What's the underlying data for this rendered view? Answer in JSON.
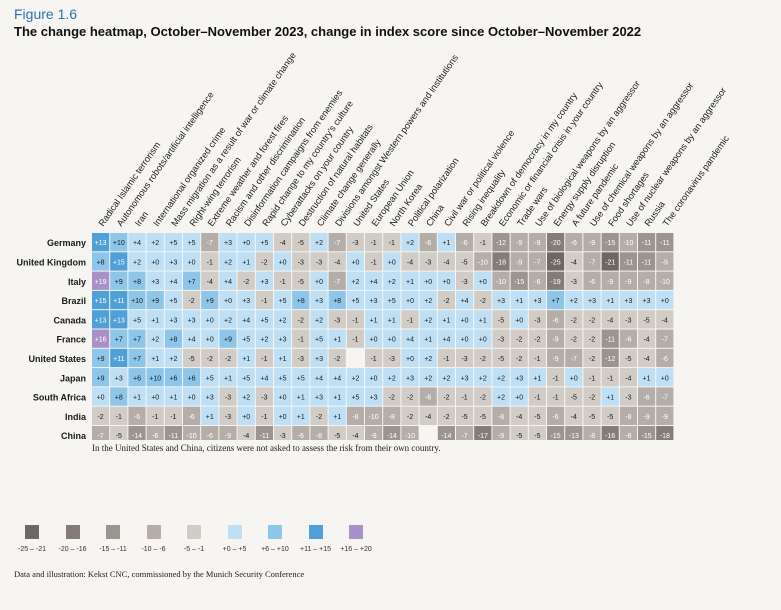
{
  "figure_label": "Figure 1.6",
  "title": "The change heatmap, October–November 2023, change in index score since October–November 2022",
  "note": "In the United States and China, citizens were not asked to assess the risk from their own country.",
  "source": "Data and illustration: Kekst CNC, commissioned by the Munich Security Conference",
  "chart_data": {
    "type": "heatmap",
    "columns": [
      "Radical Islamic terrorism",
      "Autonomous robots/artificial intelligence",
      "Iran",
      "International organized crime",
      "Mass migration as a result of war or climate change",
      "Right-wing terrorism",
      "Extreme weather and forest fires",
      "Racism and other discrimination",
      "Disinformation campaigns from enemies",
      "Rapid change to my country's culture",
      "Cyberattacks on your country",
      "Destruction of natural habitats",
      "Climate change generally",
      "Divisions amongst Western powers and institutions",
      "United States",
      "European Union",
      "North Korea",
      "Political polarization",
      "China",
      "Civil war or political violence",
      "Rising inequality",
      "Breakdown of democracy in my country",
      "Economic or financial crisis in your country",
      "Trade wars",
      "Use of biological weapons by an aggressor",
      "Energy supply disruption",
      "A future pandemic",
      "Use of chemical weapons by an aggressor",
      "Food shortages",
      "Use of nuclear weapons by an aggressor",
      "Russia",
      "The coronavirus pandemic"
    ],
    "rows": [
      {
        "country": "Germany",
        "values": [
          "+13",
          "+10",
          "+4",
          "+2",
          "+5",
          "+5",
          "-7",
          "+3",
          "+0",
          "+5",
          "-4",
          "-5",
          "+2",
          "-7",
          "-3",
          "-1",
          "-1",
          "+2",
          "-6",
          "+1",
          "-6",
          "-1",
          "-12",
          "-9",
          "-9",
          "-20",
          "-6",
          "-9",
          "-15",
          "-10",
          "-11",
          "-11"
        ]
      },
      {
        "country": "United Kingdom",
        "values": [
          "+8",
          "+15",
          "+2",
          "+0",
          "+3",
          "+0",
          "-1",
          "+2",
          "+1",
          "-2",
          "+0",
          "-3",
          "-3",
          "-4",
          "+0",
          "-1",
          "+0",
          "-4",
          "-3",
          "-4",
          "-5",
          "-10",
          "-18",
          "-9",
          "-7",
          "-25",
          "-4",
          "-7",
          "-21",
          "-11",
          "-11",
          "-9"
        ]
      },
      {
        "country": "Italy",
        "values": [
          "+19",
          "+9",
          "+8",
          "+3",
          "+4",
          "+7",
          "-4",
          "+4",
          "-2",
          "+3",
          "-1",
          "-5",
          "+0",
          "-7",
          "+2",
          "+4",
          "+2",
          "+1",
          "+0",
          "+0",
          "-3",
          "+0",
          "-10",
          "-15",
          "-6",
          "-19",
          "-3",
          "-6",
          "-9",
          "-9",
          "-8",
          "-10"
        ]
      },
      {
        "country": "Brazil",
        "values": [
          "+15",
          "+11",
          "+10",
          "+9",
          "+5",
          "-2",
          "+9",
          "+0",
          "+3",
          "-1",
          "+5",
          "+8",
          "+3",
          "+8",
          "+5",
          "+3",
          "+5",
          "+0",
          "+2",
          "-2",
          "+4",
          "-2",
          "+3",
          "+1",
          "+3",
          "+7",
          "+2",
          "+3",
          "+1",
          "+3",
          "+3",
          "+0"
        ]
      },
      {
        "country": "Canada",
        "values": [
          "+13",
          "+13",
          "+5",
          "+1",
          "+3",
          "+3",
          "+0",
          "+2",
          "+4",
          "+5",
          "+2",
          "-2",
          "+2",
          "-3",
          "-1",
          "+1",
          "+1",
          "-1",
          "+2",
          "+1",
          "+0",
          "+1",
          "-5",
          "+0",
          "-3",
          "-6",
          "-2",
          "-2",
          "-4",
          "-3",
          "-5",
          "-4"
        ]
      },
      {
        "country": "France",
        "values": [
          "+16",
          "+7",
          "+7",
          "+2",
          "+8",
          "+4",
          "+0",
          "+9",
          "+5",
          "+2",
          "+3",
          "-1",
          "+5",
          "+1",
          "-1",
          "+0",
          "+0",
          "+4",
          "+1",
          "+4",
          "+0",
          "+0",
          "-3",
          "-2",
          "-2",
          "-9",
          "-2",
          "-2",
          "-11",
          "-6",
          "-4",
          "-7"
        ]
      },
      {
        "country": "United States",
        "values": [
          "+9",
          "+11",
          "+7",
          "+1",
          "+2",
          "-5",
          "-2",
          "-2",
          "+1",
          "-1",
          "+1",
          "-3",
          "+3",
          "-2",
          "",
          "-1",
          "-3",
          "+0",
          "+2",
          "-1",
          "-3",
          "-2",
          "-5",
          "-2",
          "-1",
          "-9",
          "-7",
          "-2",
          "-12",
          "-5",
          "-4",
          "-6"
        ]
      },
      {
        "country": "Japan",
        "values": [
          "+9",
          "+3",
          "+6",
          "+10",
          "+6",
          "+6",
          "+5",
          "+1",
          "+5",
          "+4",
          "+5",
          "+5",
          "+4",
          "+4",
          "+2",
          "+0",
          "+2",
          "+3",
          "+2",
          "+2",
          "+3",
          "+2",
          "+2",
          "+3",
          "+1",
          "-1",
          "+0",
          "-1",
          "-1",
          "-4",
          "+1",
          "+0"
        ]
      },
      {
        "country": "South Africa",
        "values": [
          "+0",
          "+8",
          "+1",
          "+0",
          "+1",
          "+0",
          "+3",
          "-3",
          "+2",
          "-3",
          "+0",
          "+1",
          "+3",
          "+1",
          "+5",
          "+3",
          "-2",
          "-2",
          "-6",
          "-2",
          "-1",
          "-2",
          "+2",
          "+0",
          "-1",
          "-1",
          "-5",
          "-2",
          "+1",
          "-3",
          "-6",
          "-7"
        ]
      },
      {
        "country": "India",
        "values": [
          "-2",
          "-1",
          "-6",
          "-1",
          "-1",
          "-6",
          "+1",
          "-3",
          "+0",
          "-1",
          "+0",
          "+1",
          "-2",
          "+1",
          "-8",
          "-10",
          "-8",
          "-2",
          "-4",
          "-2",
          "-5",
          "-5",
          "-8",
          "-4",
          "-5",
          "-6",
          "-4",
          "-5",
          "-5",
          "-8",
          "-9",
          "-9"
        ]
      },
      {
        "country": "China",
        "values": [
          "-7",
          "-5",
          "-14",
          "-6",
          "-11",
          "-10",
          "-6",
          "-9",
          "-4",
          "-11",
          "-3",
          "-6",
          "-8",
          "-5",
          "-4",
          "-9",
          "-14",
          "-10",
          "",
          "-14",
          "-7",
          "-17",
          "-9",
          "-5",
          "-5",
          "-15",
          "-13",
          "-8",
          "-16",
          "-8",
          "-15",
          "-18"
        ]
      }
    ],
    "legend": [
      {
        "label": "-25 – -21",
        "color": "#6f6862"
      },
      {
        "label": "-20 – -16",
        "color": "#847d77"
      },
      {
        "label": "-15 – -11",
        "color": "#9c958f"
      },
      {
        "label": "-10 – -6",
        "color": "#b5aea8"
      },
      {
        "label": "-5 – -1",
        "color": "#d2ccc6"
      },
      {
        "label": "+0 – +5",
        "color": "#bfe0f4"
      },
      {
        "label": "+6 – +10",
        "color": "#8ec6ea"
      },
      {
        "label": "+11 – +15",
        "color": "#4f9fd8"
      },
      {
        "label": "+16 – +20",
        "color": "#a990c9"
      }
    ]
  }
}
